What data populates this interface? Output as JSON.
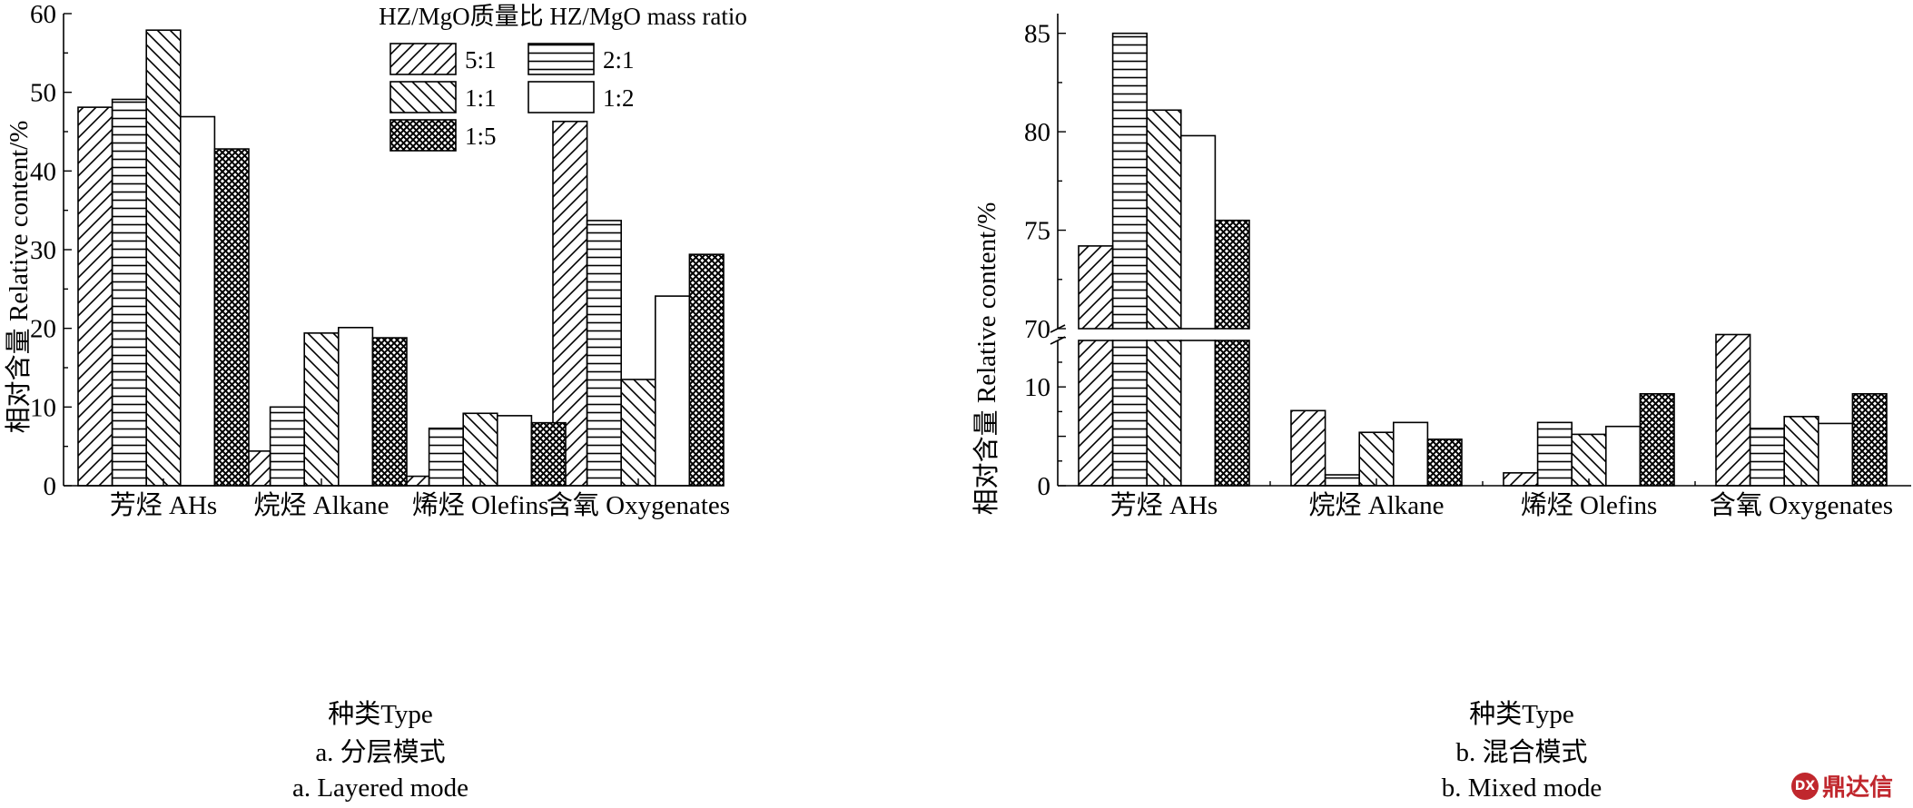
{
  "legend": {
    "title": "HZ/MgO质量比  HZ/MgO mass ratio",
    "items": [
      "5:1",
      "2:1",
      "1:1",
      "1:2",
      "1:5"
    ]
  },
  "patterns": [
    "diag-fwd",
    "horiz",
    "diag-back",
    "none",
    "crosshatch"
  ],
  "watermark": "鼎达信",
  "chart_data": [
    {
      "type": "bar",
      "panel": "a",
      "categories": [
        "芳烃 AHs",
        "烷烃 Alkane",
        "烯烃 Olefins",
        "含氧 Oxygenates"
      ],
      "series": [
        {
          "name": "5:1",
          "values": [
            48.1,
            4.4,
            1.2,
            46.3
          ]
        },
        {
          "name": "2:1",
          "values": [
            49.1,
            10.0,
            7.3,
            33.7
          ]
        },
        {
          "name": "1:1",
          "values": [
            57.9,
            19.4,
            9.2,
            13.5
          ]
        },
        {
          "name": "1:2",
          "values": [
            46.9,
            20.1,
            8.9,
            24.1
          ]
        },
        {
          "name": "1:5",
          "values": [
            42.8,
            18.8,
            8.0,
            29.4
          ]
        }
      ],
      "ylabel": "相对含量 Relative content/%",
      "xlabel": "种类Type",
      "caption_cn": "a. 分层模式",
      "caption_en": "a. Layered mode",
      "ylim": [
        0,
        60
      ],
      "yticks": [
        "0",
        "10",
        "20",
        "30",
        "40",
        "50",
        "60"
      ],
      "legend": "top-center",
      "grid": false
    },
    {
      "type": "bar",
      "panel": "b",
      "categories": [
        "芳烃 AHs",
        "烷烃 Alkane",
        "烯烃 Olefins",
        "含氧 Oxygenates"
      ],
      "series": [
        {
          "name": "5:1",
          "values": [
            74.2,
            7.6,
            1.3,
            15.3
          ]
        },
        {
          "name": "2:1",
          "values": [
            85.0,
            1.1,
            6.4,
            5.8
          ]
        },
        {
          "name": "1:1",
          "values": [
            81.1,
            5.4,
            5.2,
            7.0
          ]
        },
        {
          "name": "1:2",
          "values": [
            79.8,
            6.4,
            6.0,
            6.3
          ]
        },
        {
          "name": "1:5",
          "values": [
            75.5,
            4.7,
            9.3,
            9.3
          ]
        }
      ],
      "ylabel": "相对含量 Relative content/%",
      "xlabel": "种类Type",
      "caption_cn": "b. 混合模式",
      "caption_en": "b. Mixed mode",
      "axis_break": {
        "lower": [
          0,
          17
        ],
        "upper": [
          70,
          86
        ]
      },
      "yticks_lower": [
        "0",
        "5",
        "10",
        "15"
      ],
      "ytick_labels_lower": [
        "0",
        "",
        "10",
        ""
      ],
      "yticks_upper": [
        "70",
        "75",
        "80",
        "85"
      ],
      "ytick_labels_upper": [
        "70",
        "75",
        "80",
        "85"
      ],
      "grid": false
    }
  ]
}
